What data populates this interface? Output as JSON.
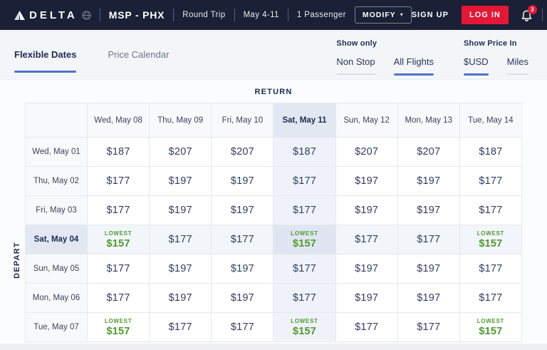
{
  "colors": {
    "navy": "#1a2136",
    "delta-red": "#e31837",
    "accent-blue": "#4d74c8",
    "green": "#4f9a2e"
  },
  "topbar": {
    "logo_text": "DELTA",
    "route": "MSP - PHX",
    "trip_type": "Round Trip",
    "dates": "May 4-11",
    "passengers": "1 Passenger",
    "modify_label": "MODIFY",
    "signup_label": "SIGN UP",
    "login_label": "LOG IN",
    "notification_count": "3"
  },
  "tabs": [
    {
      "label": "Flexible Dates",
      "active": true
    },
    {
      "label": "Price Calendar",
      "active": false
    }
  ],
  "filters": {
    "show_only": {
      "label": "Show only",
      "options": [
        {
          "label": "Non Stop",
          "active": false
        },
        {
          "label": "All Flights",
          "active": true
        }
      ]
    },
    "show_price_in": {
      "label": "Show Price In",
      "options": [
        {
          "label": "$USD",
          "active": true
        },
        {
          "label": "Miles",
          "active": false
        }
      ]
    }
  },
  "matrix": {
    "return_label": "RETURN",
    "depart_label": "DEPART",
    "lowest_label": "LOWEST",
    "return_dates": [
      "Wed, May 08",
      "Thu, May 09",
      "Fri, May 10",
      "Sat, May 11",
      "Sun, May 12",
      "Mon, May 13",
      "Tue, May 14"
    ],
    "selected_return_index": 3,
    "selected_depart_index": 3,
    "rows": [
      {
        "depart": "Wed, May 01",
        "cells": [
          {
            "price": "$187"
          },
          {
            "price": "$207"
          },
          {
            "price": "$207"
          },
          {
            "price": "$187"
          },
          {
            "price": "$207"
          },
          {
            "price": "$207"
          },
          {
            "price": "$187"
          }
        ]
      },
      {
        "depart": "Thu, May 02",
        "cells": [
          {
            "price": "$177"
          },
          {
            "price": "$197"
          },
          {
            "price": "$197"
          },
          {
            "price": "$177"
          },
          {
            "price": "$197"
          },
          {
            "price": "$197"
          },
          {
            "price": "$177"
          }
        ]
      },
      {
        "depart": "Fri, May 03",
        "cells": [
          {
            "price": "$177"
          },
          {
            "price": "$197"
          },
          {
            "price": "$197"
          },
          {
            "price": "$177"
          },
          {
            "price": "$197"
          },
          {
            "price": "$197"
          },
          {
            "price": "$177"
          }
        ]
      },
      {
        "depart": "Sat, May 04",
        "cells": [
          {
            "price": "$157",
            "lowest": true
          },
          {
            "price": "$177"
          },
          {
            "price": "$177"
          },
          {
            "price": "$157",
            "lowest": true
          },
          {
            "price": "$177"
          },
          {
            "price": "$177"
          },
          {
            "price": "$157",
            "lowest": true
          }
        ]
      },
      {
        "depart": "Sun, May 05",
        "cells": [
          {
            "price": "$177"
          },
          {
            "price": "$197"
          },
          {
            "price": "$197"
          },
          {
            "price": "$177"
          },
          {
            "price": "$197"
          },
          {
            "price": "$197"
          },
          {
            "price": "$177"
          }
        ]
      },
      {
        "depart": "Mon, May 06",
        "cells": [
          {
            "price": "$177"
          },
          {
            "price": "$197"
          },
          {
            "price": "$197"
          },
          {
            "price": "$177"
          },
          {
            "price": "$197"
          },
          {
            "price": "$197"
          },
          {
            "price": "$177"
          }
        ]
      },
      {
        "depart": "Tue, May 07",
        "cells": [
          {
            "price": "$157",
            "lowest": true
          },
          {
            "price": "$177"
          },
          {
            "price": "$177"
          },
          {
            "price": "$157",
            "lowest": true
          },
          {
            "price": "$177"
          },
          {
            "price": "$177"
          },
          {
            "price": "$157",
            "lowest": true
          }
        ]
      }
    ]
  }
}
